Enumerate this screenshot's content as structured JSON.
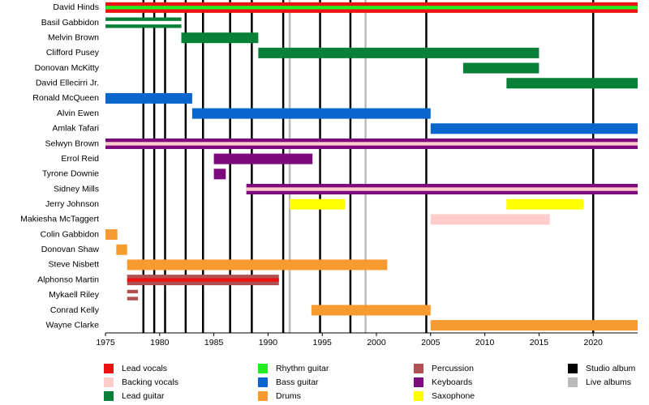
{
  "chart_data": {
    "type": "timeline",
    "xlim": [
      1975,
      2024.1
    ],
    "xticks": [
      1975,
      1980,
      1985,
      1990,
      1995,
      2000,
      2005,
      2010,
      2015,
      2020
    ],
    "roles": [
      {
        "name": "Lead vocals",
        "color": "#ee1111"
      },
      {
        "name": "Backing vocals",
        "color": "#ffcccc"
      },
      {
        "name": "Lead guitar",
        "color": "#088037"
      },
      {
        "name": "Rhythm guitar",
        "color": "#22ee22"
      },
      {
        "name": "Bass guitar",
        "color": "#0a66cc"
      },
      {
        "name": "Drums",
        "color": "#f79a30"
      },
      {
        "name": "Percussion",
        "color": "#b05050"
      },
      {
        "name": "Keyboards",
        "color": "#7d0a7d"
      },
      {
        "name": "Saxophone",
        "color": "#ffff00"
      }
    ],
    "albums": [
      {
        "name": "Studio album",
        "color": "#000000",
        "years": [
          1978.5,
          1979.5,
          1980.5,
          1982.4,
          1984,
          1986.5,
          1988.5,
          1991.4,
          1994.8,
          1997.6,
          2004.6,
          2020
        ]
      },
      {
        "name": "Live albums",
        "color": "#bbbbbb",
        "years": [
          1992,
          1999
        ]
      }
    ],
    "members": [
      {
        "name": "David Hinds",
        "periods": [
          {
            "start": 1975,
            "end": 2024.1,
            "colors": [
              "#ee1111",
              "#22ee22"
            ]
          }
        ]
      },
      {
        "name": "Basil Gabbidon",
        "periods": [
          {
            "start": 1975,
            "end": 1982,
            "colors": [
              "#088037",
              "#ffffff"
            ]
          }
        ]
      },
      {
        "name": "Melvin Brown",
        "periods": [
          {
            "start": 1982,
            "end": 1989.1,
            "colors": [
              "#088037"
            ]
          }
        ]
      },
      {
        "name": "Clifford Pusey",
        "periods": [
          {
            "start": 1989.1,
            "end": 2015,
            "colors": [
              "#088037"
            ]
          }
        ]
      },
      {
        "name": "Donovan McKitty",
        "periods": [
          {
            "start": 2008,
            "end": 2015,
            "colors": [
              "#088037"
            ]
          }
        ]
      },
      {
        "name": "David Ellecirri Jr.",
        "periods": [
          {
            "start": 2012,
            "end": 2024.1,
            "colors": [
              "#088037"
            ]
          }
        ]
      },
      {
        "name": "Ronald McQueen",
        "periods": [
          {
            "start": 1975,
            "end": 1983,
            "colors": [
              "#0a66cc"
            ]
          }
        ]
      },
      {
        "name": "Alvin Ewen",
        "periods": [
          {
            "start": 1983,
            "end": 2005,
            "colors": [
              "#0a66cc"
            ]
          }
        ]
      },
      {
        "name": "Amlak Tafari",
        "periods": [
          {
            "start": 2005,
            "end": 2024.1,
            "colors": [
              "#0a66cc"
            ]
          }
        ]
      },
      {
        "name": "Selwyn Brown",
        "periods": [
          {
            "start": 1975,
            "end": 2024.1,
            "colors": [
              "#7d0a7d",
              "#ffcccc"
            ]
          }
        ]
      },
      {
        "name": "Errol Reid",
        "periods": [
          {
            "start": 1985,
            "end": 1994.1,
            "colors": [
              "#7d0a7d"
            ]
          }
        ]
      },
      {
        "name": "Tyrone Downie",
        "periods": [
          {
            "start": 1985,
            "end": 1986.1,
            "colors": [
              "#7d0a7d"
            ]
          }
        ]
      },
      {
        "name": "Sidney Mills",
        "periods": [
          {
            "start": 1988,
            "end": 2024.1,
            "colors": [
              "#7d0a7d",
              "#ffcccc"
            ]
          }
        ]
      },
      {
        "name": "Jerry Johnson",
        "periods": [
          {
            "start": 1992,
            "end": 1997.1,
            "colors": [
              "#ffff00"
            ]
          },
          {
            "start": 2012,
            "end": 2019.1,
            "colors": [
              "#ffff00"
            ]
          }
        ]
      },
      {
        "name": "Makiesha McTaggert",
        "periods": [
          {
            "start": 2005,
            "end": 2016,
            "colors": [
              "#ffcccc"
            ]
          }
        ]
      },
      {
        "name": "Colin Gabbidon",
        "periods": [
          {
            "start": 1975,
            "end": 1976.1,
            "colors": [
              "#f79a30"
            ]
          }
        ]
      },
      {
        "name": "Donovan Shaw",
        "periods": [
          {
            "start": 1976,
            "end": 1977,
            "colors": [
              "#f79a30"
            ]
          }
        ]
      },
      {
        "name": "Steve Nisbett",
        "periods": [
          {
            "start": 1977,
            "end": 2001,
            "colors": [
              "#f79a30"
            ]
          }
        ]
      },
      {
        "name": "Alphonso Martin",
        "periods": [
          {
            "start": 1977,
            "end": 1991,
            "colors": [
              "#b05050",
              "#ee1111"
            ]
          }
        ]
      },
      {
        "name": "Mykaell Riley",
        "periods": [
          {
            "start": 1977,
            "end": 1978,
            "colors": [
              "#b05050",
              "#ffffff"
            ]
          }
        ]
      },
      {
        "name": "Conrad Kelly",
        "periods": [
          {
            "start": 1994,
            "end": 2005,
            "colors": [
              "#f79a30"
            ]
          }
        ]
      },
      {
        "name": "Wayne Clarke",
        "periods": [
          {
            "start": 2005,
            "end": 2024.1,
            "colors": [
              "#f79a30"
            ]
          }
        ]
      }
    ]
  }
}
